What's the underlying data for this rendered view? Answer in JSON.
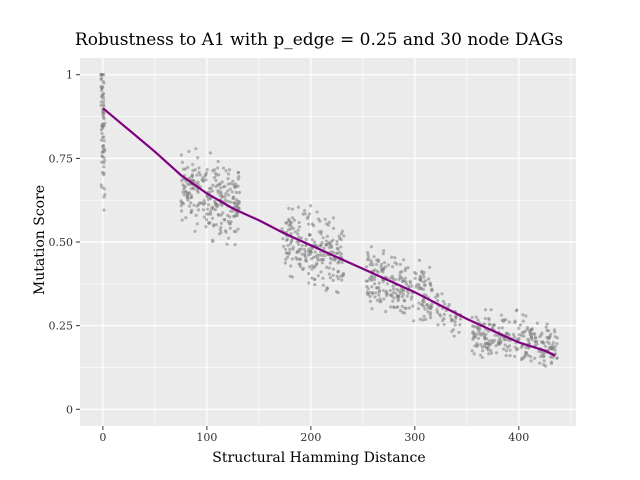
{
  "chart_data": {
    "type": "scatter",
    "title": "Robustness to A1 with p_edge = 0.25 and 30 node DAGs",
    "xlabel": "Structural Hamming Distance",
    "ylabel": "Mutation Score",
    "xlim": [
      -22,
      455
    ],
    "ylim": [
      -0.05,
      1.05
    ],
    "x_ticks": [
      0,
      100,
      200,
      300,
      400
    ],
    "x_tick_labels": [
      "0",
      "100",
      "200",
      "300",
      "400"
    ],
    "y_ticks": [
      0,
      0.25,
      0.5,
      0.75,
      1
    ],
    "y_tick_labels": [
      "0",
      "0.25",
      "0.50",
      "0.75",
      "1"
    ],
    "grid": true,
    "background": "#ebebeb",
    "colors": {
      "points": "#808080",
      "trend": "#800080",
      "panel": "#ebebeb",
      "gridline": "#ffffff"
    },
    "point_clusters": [
      {
        "x_min": -2,
        "x_max": 2,
        "y_center": 0.85,
        "y_spread": 0.28,
        "count": 80
      },
      {
        "x_min": 75,
        "x_max": 132,
        "y_center": 0.64,
        "y_spread": 0.14,
        "count": 260
      },
      {
        "x_min": 172,
        "x_max": 232,
        "y_center": 0.48,
        "y_spread": 0.13,
        "count": 240
      },
      {
        "x_min": 253,
        "x_max": 318,
        "y_center": 0.36,
        "y_spread": 0.12,
        "count": 230
      },
      {
        "x_min": 320,
        "x_max": 345,
        "y_center": 0.28,
        "y_spread": 0.07,
        "count": 40
      },
      {
        "x_min": 355,
        "x_max": 437,
        "y_center": 0.21,
        "y_spread": 0.09,
        "count": 260
      }
    ],
    "series": [
      {
        "type": "line",
        "x": [
          0,
          25,
          50,
          75,
          100,
          125,
          150,
          175,
          200,
          225,
          250,
          275,
          300,
          325,
          350,
          375,
          400,
          425,
          435
        ],
        "y": [
          0.9,
          0.835,
          0.77,
          0.7,
          0.645,
          0.6,
          0.565,
          0.525,
          0.49,
          0.455,
          0.42,
          0.385,
          0.35,
          0.31,
          0.27,
          0.235,
          0.2,
          0.175,
          0.16
        ]
      }
    ]
  }
}
